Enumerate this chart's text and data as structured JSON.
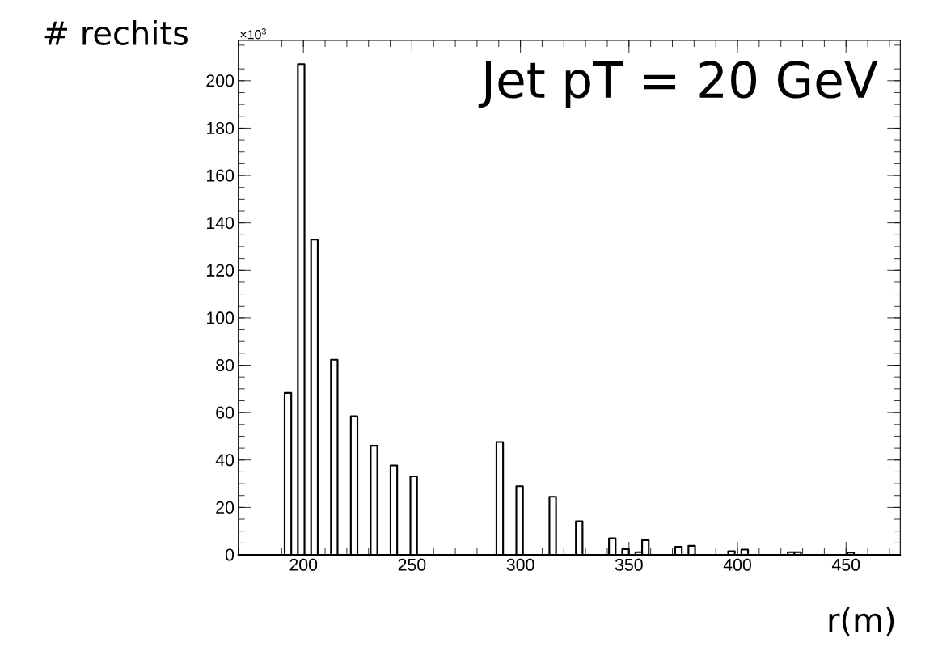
{
  "chart_data": {
    "type": "histogram",
    "ylabel": "# rechits",
    "xlabel": "r(m)",
    "annotations": [
      "×10$^{3}$",
      "Jet pT = 20 GeV"
    ],
    "color": "#000000",
    "bins": [
      170,
      173.05,
      176.1,
      179.15,
      182.2,
      185.25,
      188.3,
      191.35,
      194.4,
      197.45,
      200.5,
      203.55,
      206.6,
      209.65,
      212.7,
      215.75,
      218.8,
      221.85,
      224.9,
      227.95,
      231,
      234.05,
      237.1,
      240.15,
      243.2,
      246.25,
      249.3,
      252.35,
      255.4,
      258.45,
      261.5,
      264.55,
      267.6,
      270.65,
      273.7,
      276.75,
      279.8,
      282.85,
      285.9,
      288.95,
      292,
      295.05,
      298.1,
      301.15,
      304.2,
      307.25,
      310.3,
      313.35,
      316.4,
      319.45,
      322.5,
      325.55,
      328.6,
      331.65,
      334.7,
      337.75,
      340.8,
      343.85,
      346.9,
      349.95,
      353,
      356.05,
      359.1,
      362.15,
      365.2,
      368.25,
      371.3,
      374.35,
      377.4,
      380.45,
      383.5,
      386.55,
      389.6,
      392.65,
      395.7,
      398.75,
      401.8,
      404.85,
      407.9,
      410.95,
      414,
      417.05,
      420.1,
      423.15,
      426.2,
      429.25,
      432.3,
      435.35,
      438.4,
      441.45,
      444.5,
      447.55,
      450.6,
      453.65,
      456.7,
      459.75,
      462.8,
      465.85,
      468.9,
      471.95,
      475
    ],
    "values": [
      0,
      0,
      0,
      0,
      0,
      0,
      0,
      68.3,
      0,
      207,
      0,
      133,
      0,
      0,
      82.3,
      0,
      0,
      58.5,
      0,
      0,
      46,
      0,
      0,
      37.7,
      0,
      0,
      33.1,
      0,
      0,
      0,
      0,
      0,
      0,
      0,
      0,
      0,
      0,
      0,
      0,
      47.6,
      0,
      0,
      28.9,
      0,
      0,
      0,
      0,
      24.5,
      0,
      0,
      0,
      14.1,
      0,
      0,
      0,
      0,
      7.0,
      0,
      2.4,
      0,
      1.1,
      6.2,
      0,
      0,
      0,
      0,
      3.4,
      0,
      3.8,
      0,
      0,
      0,
      0,
      0,
      1.5,
      0,
      2.2,
      0,
      0,
      0,
      0,
      0,
      0,
      1.1,
      1.1,
      0,
      0,
      0,
      0,
      0,
      0,
      0,
      1.0,
      0,
      0,
      0,
      0,
      0,
      0,
      0
    ],
    "xlim": [
      170,
      475
    ],
    "xticks": [
      200,
      250,
      300,
      350,
      400,
      450
    ],
    "ylim": [
      0,
      217
    ],
    "yticks": [
      0,
      20,
      40,
      60,
      80,
      100,
      120,
      140,
      160,
      180,
      200
    ]
  }
}
